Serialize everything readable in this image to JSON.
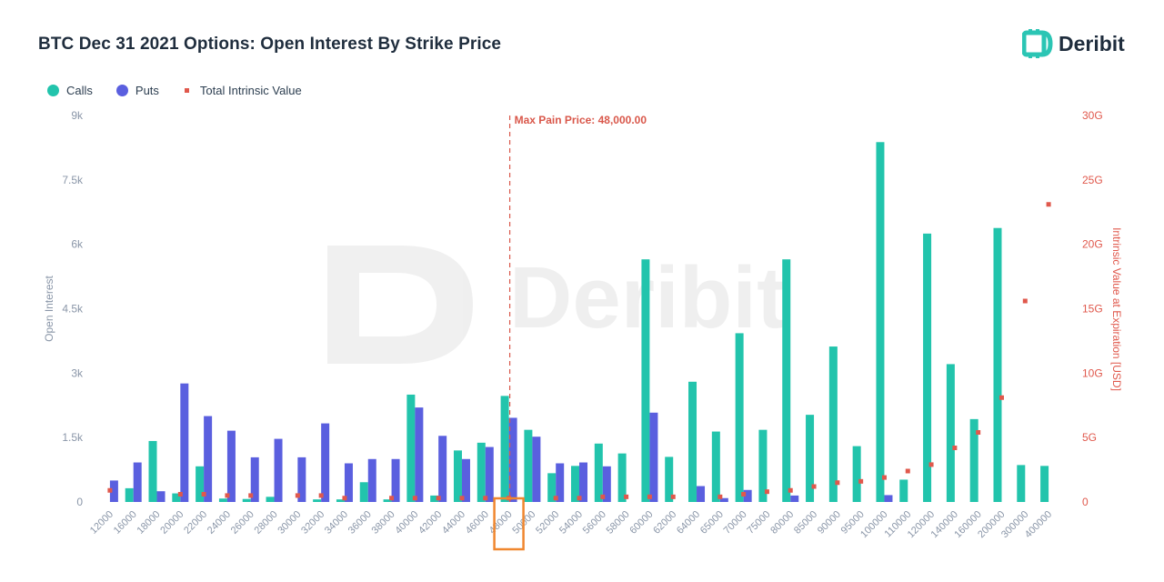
{
  "title": "BTC Dec 31 2021 Options: Open Interest By Strike Price",
  "logo": {
    "name": "Deribit",
    "icon": "deribit-d-icon",
    "color": "#2bc5b4"
  },
  "watermark": "Deribit",
  "colors": {
    "calls": "#22c4ac",
    "puts": "#5a5fdf",
    "intrinsic": "#e0584c",
    "max_pain": "#d9574a",
    "highlight": "#f0872f"
  },
  "legend": [
    {
      "label": "Calls",
      "color": "#22c4ac",
      "shape": "circle"
    },
    {
      "label": "Puts",
      "color": "#5a5fdf",
      "shape": "circle"
    },
    {
      "label": "Total Intrinsic Value",
      "color": "#e0584c",
      "shape": "square"
    }
  ],
  "chart_data": {
    "type": "bar",
    "title": "BTC Dec 31 2021 Options: Open Interest By Strike Price",
    "ylabel": "Open Interest",
    "y2label": "Intrinsic Value at Expiration [USD]",
    "ylim": [
      0,
      9000
    ],
    "y2lim": [
      0,
      30000000000
    ],
    "yticks": [
      "0",
      "1.5k",
      "3k",
      "4.5k",
      "6k",
      "7.5k",
      "9k"
    ],
    "y2ticks": [
      "0",
      "5G",
      "10G",
      "15G",
      "20G",
      "25G",
      "30G"
    ],
    "annotation": {
      "label": "Max Pain Price: 48,000.00",
      "strike": "48000"
    },
    "highlighted_category": "48000",
    "grid": false,
    "legend_position": "top-left",
    "categories": [
      "12000",
      "16000",
      "18000",
      "20000",
      "22000",
      "24000",
      "26000",
      "28000",
      "30000",
      "32000",
      "34000",
      "36000",
      "38000",
      "40000",
      "42000",
      "44000",
      "46000",
      "48000",
      "50000",
      "52000",
      "54000",
      "56000",
      "58000",
      "60000",
      "62000",
      "64000",
      "65000",
      "70000",
      "75000",
      "80000",
      "85000",
      "90000",
      "95000",
      "100000",
      "110000",
      "120000",
      "140000",
      "160000",
      "200000",
      "300000",
      "400000"
    ],
    "series": [
      {
        "name": "Calls",
        "axis": "left",
        "values": [
          0,
          320,
          1420,
          200,
          830,
          80,
          70,
          120,
          0,
          60,
          60,
          460,
          60,
          2500,
          150,
          1200,
          1380,
          2470,
          1680,
          670,
          840,
          1360,
          1130,
          5650,
          1050,
          2800,
          1640,
          3930,
          1680,
          5650,
          2030,
          3620,
          1300,
          8380,
          520,
          6250,
          3210,
          1930,
          6380,
          860,
          840
        ]
      },
      {
        "name": "Puts",
        "axis": "left",
        "values": [
          500,
          920,
          250,
          2760,
          2000,
          1660,
          1040,
          1470,
          1040,
          1830,
          900,
          1000,
          1000,
          2200,
          1540,
          1000,
          1280,
          1960,
          1520,
          900,
          920,
          830,
          0,
          2080,
          0,
          370,
          90,
          280,
          0,
          150,
          0,
          0,
          0,
          160,
          0,
          0,
          0,
          0,
          0,
          0,
          0
        ]
      },
      {
        "name": "Total Intrinsic Value",
        "axis": "right",
        "values": [
          900000000,
          0,
          0,
          600000000,
          600000000,
          500000000,
          500000000,
          0,
          500000000,
          500000000,
          300000000,
          0,
          300000000,
          300000000,
          300000000,
          300000000,
          300000000,
          300000000,
          0,
          300000000,
          300000000,
          400000000,
          400000000,
          400000000,
          400000000,
          0,
          400000000,
          600000000,
          800000000,
          900000000,
          1200000000,
          1500000000,
          1600000000,
          1900000000,
          2400000000,
          2900000000,
          4200000000,
          5400000000,
          8100000000,
          15600000000,
          23100000000
        ]
      }
    ]
  }
}
